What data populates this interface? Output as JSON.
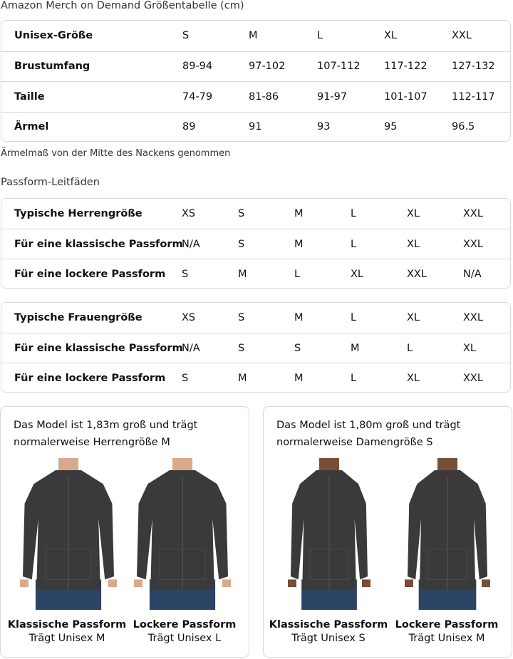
{
  "title": "Amazon Merch on Demand Größentabelle (cm)",
  "size_table": {
    "rows": [
      [
        "Unisex-Größe",
        "S",
        "M",
        "L",
        "XL",
        "XXL"
      ],
      [
        "Brustumfang",
        "89-94",
        "97-102",
        "107-112",
        "117-122",
        "127-132"
      ],
      [
        "Taille",
        "74-79",
        "81-86",
        "91-97",
        "101-107",
        "112-117"
      ],
      [
        "Ärmel",
        "89",
        "91",
        "93",
        "95",
        "96.5"
      ]
    ]
  },
  "note": "Ärmelmaß von der Mitte des Nackens genommen",
  "fit_title": "Passform-Leitfäden",
  "men_table": {
    "rows": [
      [
        "Typische Herrengröße",
        "XS",
        "S",
        "M",
        "L",
        "XL",
        "XXL"
      ],
      [
        "Für eine klassische Passform",
        "N/A",
        "S",
        "M",
        "L",
        "XL",
        "XXL"
      ],
      [
        "Für eine lockere Passform",
        "S",
        "M",
        "L",
        "XL",
        "XXL",
        "N/A"
      ]
    ]
  },
  "women_table": {
    "rows": [
      [
        "Typische Frauengröße",
        "XS",
        "S",
        "M",
        "L",
        "XL",
        "XXL"
      ],
      [
        "Für eine klassische Passform",
        "N/A",
        "S",
        "S",
        "M",
        "L",
        "XL"
      ],
      [
        "Für eine lockere Passform",
        "S",
        "M",
        "M",
        "L",
        "XL",
        "XXL"
      ]
    ]
  },
  "cards": [
    {
      "desc_1": "Das Model ist 1,83m groß und trägt",
      "desc_2": "normalerweise Herrengröße M",
      "figures": [
        {
          "fit": "Klassische Passform",
          "wears": "Trägt Unisex M"
        },
        {
          "fit": "Lockere Passform",
          "wears": "Trägt Unisex L"
        }
      ]
    },
    {
      "desc_1": "Das Model ist 1,80m groß und trägt",
      "desc_2": "normalerweise Damengröße S",
      "figures": [
        {
          "fit": "Klassische Passform",
          "wears": "Trägt Unisex S"
        },
        {
          "fit": "Lockere Passform",
          "wears": "Trägt Unisex M"
        }
      ]
    }
  ],
  "colors": {
    "hoodie": "#3a3a3c",
    "jeans": "#2c4466",
    "skin_m": "#d9a98c",
    "skin_f": "#7a4e36",
    "border": "#d5d9d9"
  }
}
